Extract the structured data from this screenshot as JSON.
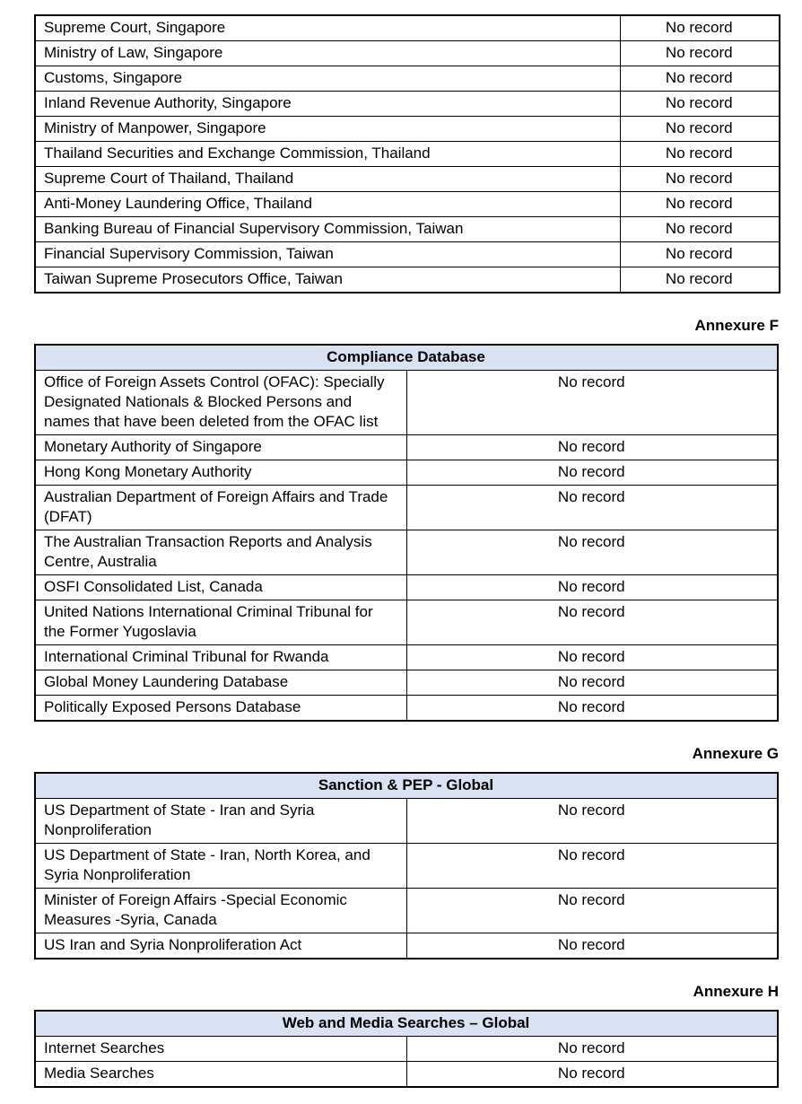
{
  "colors": {
    "header_bg": "#d9e2f3",
    "border": "#000000",
    "text": "#000000",
    "page_bg": "#ffffff"
  },
  "continuation_table": {
    "rows": [
      {
        "source": "Supreme Court, Singapore",
        "result": "No record"
      },
      {
        "source": "Ministry of Law, Singapore",
        "result": "No record"
      },
      {
        "source": "Customs, Singapore",
        "result": "No record"
      },
      {
        "source": "Inland Revenue Authority, Singapore",
        "result": "No record"
      },
      {
        "source": "Ministry of Manpower, Singapore",
        "result": "No record"
      },
      {
        "source": "Thailand Securities and Exchange Commission, Thailand",
        "result": "No record"
      },
      {
        "source": "Supreme Court of Thailand, Thailand",
        "result": "No record"
      },
      {
        "source": "Anti-Money Laundering Office, Thailand",
        "result": "No record"
      },
      {
        "source": "Banking Bureau of Financial Supervisory Commission, Taiwan",
        "result": "No record"
      },
      {
        "source": "Financial Supervisory Commission, Taiwan",
        "result": "No record"
      },
      {
        "source": "Taiwan Supreme Prosecutors Office, Taiwan",
        "result": "No record"
      }
    ]
  },
  "annexure_f": {
    "label": "Annexure F",
    "title": "Compliance Database",
    "rows": [
      {
        "source": "Office of Foreign Assets Control (OFAC): Specially Designated Nationals & Blocked Persons and names that have been deleted from the OFAC list",
        "result": "No record"
      },
      {
        "source": "Monetary Authority of Singapore",
        "result": "No record"
      },
      {
        "source": "Hong Kong Monetary Authority",
        "result": "No record"
      },
      {
        "source": "Australian Department of Foreign Affairs and Trade (DFAT)",
        "result": "No record"
      },
      {
        "source": "The Australian Transaction Reports and Analysis Centre, Australia",
        "result": "No record"
      },
      {
        "source": "OSFI Consolidated List, Canada",
        "result": "No record"
      },
      {
        "source": "United Nations International Criminal Tribunal for the Former Yugoslavia",
        "result": "No record"
      },
      {
        "source": "International Criminal Tribunal for Rwanda",
        "result": "No record"
      },
      {
        "source": "Global Money Laundering Database",
        "result": "No record"
      },
      {
        "source": "Politically Exposed Persons Database",
        "result": "No record"
      }
    ]
  },
  "annexure_g": {
    "label": "Annexure G",
    "title": "Sanction & PEP - Global",
    "rows": [
      {
        "source": "US Department of State - Iran and Syria Nonproliferation",
        "result": "No record"
      },
      {
        "source": "US Department of State - Iran, North Korea, and Syria Nonproliferation",
        "result": "No record"
      },
      {
        "source": "Minister of Foreign Affairs -Special Economic Measures -Syria, Canada",
        "result": "No record"
      },
      {
        "source": "US Iran and Syria Nonproliferation Act",
        "result": "No record"
      }
    ]
  },
  "annexure_h": {
    "label": "Annexure H",
    "title": "Web and Media Searches – Global",
    "rows": [
      {
        "source": "Internet Searches",
        "result": "No record"
      },
      {
        "source": "Media Searches",
        "result": "No record"
      }
    ]
  }
}
